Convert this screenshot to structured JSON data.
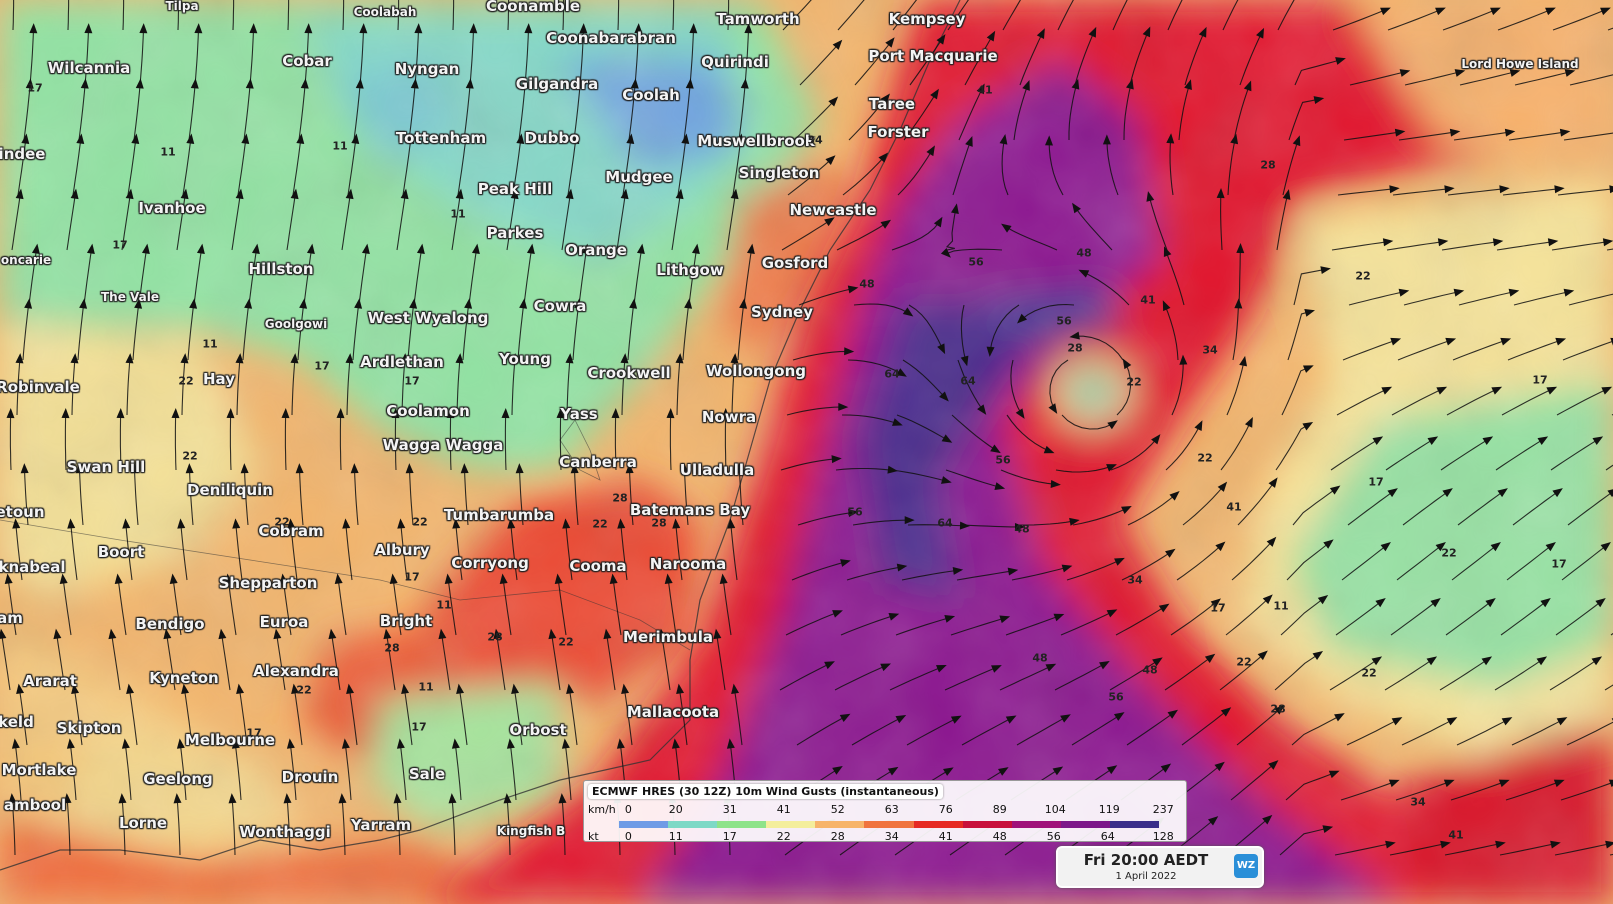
{
  "map": {
    "places": [
      {
        "name": "Tilpa",
        "small": true
      },
      {
        "name": "Coolabah",
        "small": true
      },
      {
        "name": "Coonamble"
      },
      {
        "name": "Tamworth"
      },
      {
        "name": "Kempsey"
      },
      {
        "name": "Wilcannia"
      },
      {
        "name": "Cobar"
      },
      {
        "name": "Nyngan"
      },
      {
        "name": "Coonabarabran"
      },
      {
        "name": "Gilgandra"
      },
      {
        "name": "Quirindi"
      },
      {
        "name": "Port Macquarie"
      },
      {
        "name": "Coolah"
      },
      {
        "name": "Lord Howe Island",
        "small": true
      },
      {
        "name": "Taree"
      },
      {
        "name": "indee"
      },
      {
        "name": "Tottenham"
      },
      {
        "name": "Dubbo"
      },
      {
        "name": "Muswellbrook"
      },
      {
        "name": "Forster"
      },
      {
        "name": "Peak Hill"
      },
      {
        "name": "Mudgee"
      },
      {
        "name": "Singleton"
      },
      {
        "name": "Ivanhoe"
      },
      {
        "name": "Newcastle"
      },
      {
        "name": "Parkes"
      },
      {
        "name": "Orange"
      },
      {
        "name": "oncarie",
        "small": true
      },
      {
        "name": "Hillston"
      },
      {
        "name": "Gosford"
      },
      {
        "name": "Lithgow"
      },
      {
        "name": "The Vale",
        "small": true
      },
      {
        "name": "Cowra"
      },
      {
        "name": "Sydney"
      },
      {
        "name": "Goolgowi",
        "small": true
      },
      {
        "name": "West Wyalong"
      },
      {
        "name": "Young"
      },
      {
        "name": "Ardlethan"
      },
      {
        "name": "Wollongong"
      },
      {
        "name": "Crookwell"
      },
      {
        "name": "Hay"
      },
      {
        "name": "Robinvale"
      },
      {
        "name": "Coolamon"
      },
      {
        "name": "Yass"
      },
      {
        "name": "Nowra"
      },
      {
        "name": "Wagga Wagga"
      },
      {
        "name": "Canberra"
      },
      {
        "name": "Ulladulla"
      },
      {
        "name": "Swan Hill"
      },
      {
        "name": "Deniliquin"
      },
      {
        "name": "Batemans Bay"
      },
      {
        "name": "Tumbarumba"
      },
      {
        "name": "etoun"
      },
      {
        "name": "Cobram"
      },
      {
        "name": "Albury"
      },
      {
        "name": "Boort"
      },
      {
        "name": "Corryong"
      },
      {
        "name": "Cooma"
      },
      {
        "name": "Narooma"
      },
      {
        "name": "knabeal"
      },
      {
        "name": "Shepparton"
      },
      {
        "name": "am"
      },
      {
        "name": "Bendigo"
      },
      {
        "name": "Euroa"
      },
      {
        "name": "Bright"
      },
      {
        "name": "Merimbula"
      },
      {
        "name": "Alexandra"
      },
      {
        "name": "Ararat"
      },
      {
        "name": "Kyneton"
      },
      {
        "name": "Mallacoota"
      },
      {
        "name": "keld"
      },
      {
        "name": "Skipton"
      },
      {
        "name": "Orbost"
      },
      {
        "name": "Melbourne"
      },
      {
        "name": "Mortlake"
      },
      {
        "name": "Geelong"
      },
      {
        "name": "Drouin"
      },
      {
        "name": "Sale"
      },
      {
        "name": "ambool"
      },
      {
        "name": "Lorne"
      },
      {
        "name": "Yarram"
      },
      {
        "name": "Kingfish B",
        "small": true
      },
      {
        "name": "Wonthaggi"
      }
    ],
    "contour_labels": [
      "17",
      "11",
      "11",
      "17",
      "22",
      "17",
      "11",
      "11",
      "17",
      "22",
      "22",
      "28",
      "22",
      "17",
      "22",
      "28",
      "22",
      "28",
      "17",
      "22",
      "11",
      "17",
      "11",
      "28",
      "34",
      "41",
      "48",
      "56",
      "64",
      "64",
      "56",
      "48",
      "48",
      "56",
      "64",
      "56",
      "48",
      "41",
      "34",
      "28",
      "22",
      "22",
      "28",
      "34",
      "41",
      "48",
      "56",
      "41",
      "34",
      "28",
      "22",
      "17",
      "11",
      "17",
      "22",
      "17",
      "22",
      "17",
      "22"
    ]
  },
  "legend": {
    "title": "ECMWF HRES (30 12Z) 10m Wind Gusts (instantaneous)",
    "kmh_label": "km/h",
    "kt_label": "kt",
    "kmh_values": [
      "0",
      "20",
      "31",
      "41",
      "52",
      "63",
      "76",
      "89",
      "104",
      "119",
      "237"
    ],
    "kt_values": [
      "0",
      "11",
      "17",
      "22",
      "28",
      "34",
      "41",
      "48",
      "56",
      "64",
      "128"
    ],
    "colors": [
      "#6f9be6",
      "#7ed9c6",
      "#8ee38a",
      "#f4ee9c",
      "#f7b46a",
      "#f0743f",
      "#e62a23",
      "#c8103c",
      "#a0117a",
      "#7d178a",
      "#3a2f8a"
    ]
  },
  "timebox": {
    "time": "Fri 20:00 AEDT",
    "date": "1 April 2022",
    "logo": "WZ"
  }
}
